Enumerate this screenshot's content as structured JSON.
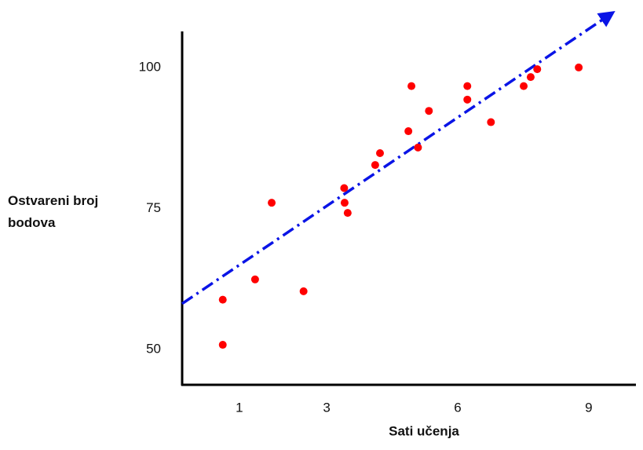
{
  "chart_data": {
    "type": "scatter",
    "x_label": "Sati učenja",
    "y_label": "Ostvareni broj bodova",
    "x": [
      0.62,
      0.62,
      1.36,
      1.74,
      2.47,
      3.4,
      3.41,
      3.48,
      4.11,
      4.22,
      4.87,
      4.94,
      5.09,
      5.34,
      6.22,
      6.22,
      6.76,
      7.51,
      7.67,
      7.82,
      8.77
    ],
    "values": [
      58.8,
      50.8,
      62.4,
      76.0,
      60.3,
      78.6,
      76.0,
      74.2,
      82.7,
      84.8,
      88.7,
      96.7,
      85.8,
      92.3,
      96.7,
      94.3,
      90.3,
      96.7,
      98.3,
      99.7,
      100
    ],
    "color": "#ff0000",
    "trend": {
      "x": [
        -0.31,
        9.45
      ],
      "values": [
        58.1,
        109.2
      ],
      "color": "#0a14e6"
    },
    "xlim": [
      -0.31,
      10.08
    ],
    "ylim": [
      43.7,
      106.4
    ],
    "xticks": [
      1,
      3,
      6,
      9
    ],
    "yticks": [
      50,
      75,
      100
    ],
    "grid": false
  }
}
